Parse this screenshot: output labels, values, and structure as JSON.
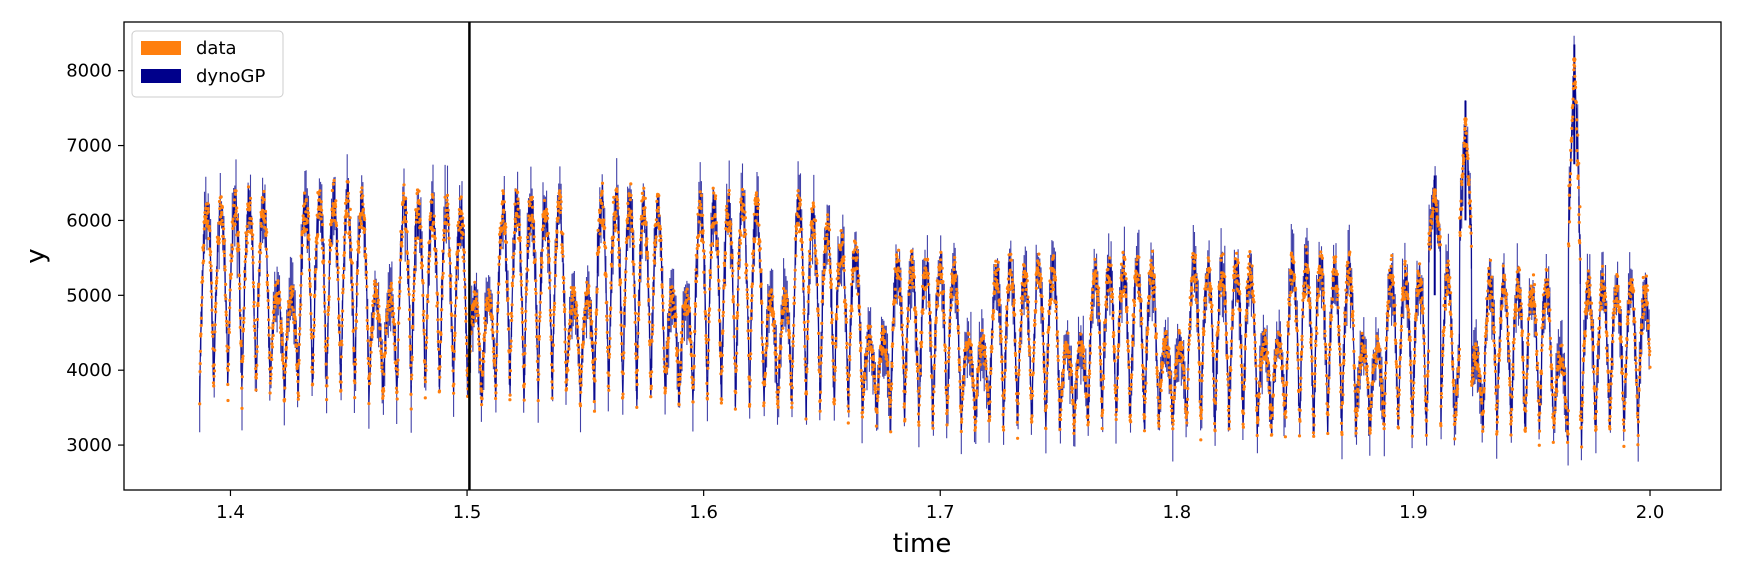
{
  "chart_data": {
    "type": "line",
    "xlabel": "time",
    "ylabel": "y",
    "xlim": [
      1.355,
      2.03
    ],
    "ylim": [
      2400,
      8650
    ],
    "x_ticks": [
      1.4,
      1.5,
      1.6,
      1.7,
      1.8,
      1.9,
      2.0
    ],
    "x_tick_labels": [
      "1.4",
      "1.5",
      "1.6",
      "1.7",
      "1.8",
      "1.9",
      "2.0"
    ],
    "y_ticks": [
      3000,
      4000,
      5000,
      6000,
      7000,
      8000
    ],
    "y_tick_labels": [
      "3000",
      "4000",
      "5000",
      "6000",
      "7000",
      "8000"
    ],
    "grid": false,
    "legend_position": "top-left",
    "vertical_line_x": 1.501,
    "series": [
      {
        "name": "data",
        "color": "#ff7f0e",
        "style": "points",
        "x_range": [
          1.387,
          2.0
        ],
        "sample_count": 6000,
        "y_approx_range": [
          2950,
          8150
        ],
        "period_daily": 0.00596,
        "period_weekly": 0.0417,
        "weekly_peak_levels": [
          {
            "x": 1.39,
            "peak": 6400
          },
          {
            "x": 1.45,
            "peak": 6500
          },
          {
            "x": 1.5,
            "peak": 6300
          },
          {
            "x": 1.55,
            "peak": 6500
          },
          {
            "x": 1.6,
            "peak": 6400
          },
          {
            "x": 1.64,
            "peak": 6500
          },
          {
            "x": 1.67,
            "peak": 5600
          },
          {
            "x": 1.75,
            "peak": 5500
          },
          {
            "x": 1.85,
            "peak": 5600
          },
          {
            "x": 1.95,
            "peak": 5300
          },
          {
            "x": 2.0,
            "peak": 5300
          }
        ],
        "weekly_trough_levels": [
          {
            "x": 1.39,
            "trough": 3600
          },
          {
            "x": 1.5,
            "trough": 3550
          },
          {
            "x": 1.6,
            "trough": 3500
          },
          {
            "x": 1.7,
            "trough": 3200
          },
          {
            "x": 1.8,
            "trough": 3150
          },
          {
            "x": 1.9,
            "trough": 3100
          },
          {
            "x": 2.0,
            "trough": 3050
          }
        ],
        "spikes": [
          {
            "x": 1.909,
            "y": 6400
          },
          {
            "x": 1.922,
            "y": 7350
          },
          {
            "x": 1.968,
            "y": 8150
          }
        ]
      },
      {
        "name": "dynoGP",
        "color": "#00008b",
        "style": "line",
        "x_range": [
          1.387,
          2.0
        ],
        "y_approx_range": [
          2700,
          8350
        ],
        "spikes": [
          {
            "x": 1.909,
            "y": 6600
          },
          {
            "x": 1.922,
            "y": 7600
          },
          {
            "x": 1.968,
            "y": 8350
          }
        ]
      }
    ]
  }
}
